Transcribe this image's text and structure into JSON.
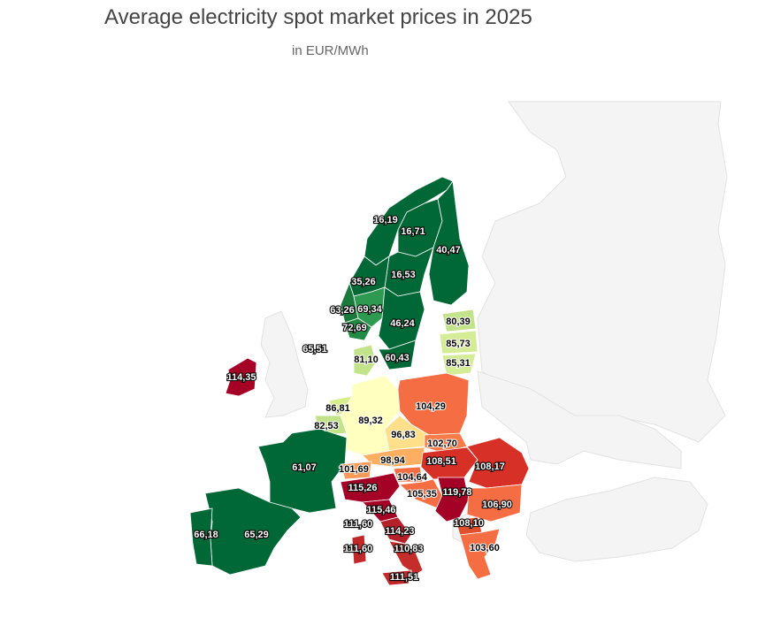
{
  "title": "Average electricity spot market prices in 2025",
  "subtitle": "in EUR/MWh",
  "chart_data": {
    "type": "choropleth",
    "title": "Average electricity spot market prices in 2025",
    "subtitle": "in EUR/MWh",
    "unit": "EUR/MWh",
    "color_scale": [
      "#006837",
      "#1a9850",
      "#66bd63",
      "#a6d96a",
      "#d9ef8b",
      "#ffffbf",
      "#fee08b",
      "#fdae61",
      "#f46d43",
      "#d73027",
      "#a50026"
    ],
    "regions": [
      {
        "id": "NO4",
        "label": "16,19",
        "value": 16.19,
        "color": "#006837"
      },
      {
        "id": "SE1",
        "label": "16,71",
        "value": 16.71,
        "color": "#006837"
      },
      {
        "id": "FI",
        "label": "40,47",
        "value": 40.47,
        "color": "#006837"
      },
      {
        "id": "SE2",
        "label": "16,53",
        "value": 16.53,
        "color": "#006837"
      },
      {
        "id": "NO3",
        "label": "35,26",
        "value": 35.26,
        "color": "#006837"
      },
      {
        "id": "NO5",
        "label": "63,26",
        "value": 63.26,
        "color": "#1a7a3c"
      },
      {
        "id": "NO1",
        "label": "69,34",
        "value": 69.34,
        "color": "#2e9950"
      },
      {
        "id": "NO2",
        "label": "72,69",
        "value": 72.69,
        "color": "#238b45"
      },
      {
        "id": "SE3",
        "label": "46,24",
        "value": 46.24,
        "color": "#006837"
      },
      {
        "id": "SE4",
        "label": "60,43",
        "value": 60.43,
        "color": "#006837"
      },
      {
        "id": "EE",
        "label": "80,39",
        "value": 80.39,
        "color": "#c2e38a"
      },
      {
        "id": "LV",
        "label": "85,73",
        "value": 85.73,
        "color": "#d5ec96"
      },
      {
        "id": "LT",
        "label": "85,31",
        "value": 85.31,
        "color": "#d5ec96"
      },
      {
        "id": "GB",
        "label": "65,51",
        "value": 65.51,
        "color": "#f4f4f4"
      },
      {
        "id": "DK",
        "label": "81,10",
        "value": 81.1,
        "color": "#c2e38a"
      },
      {
        "id": "IE",
        "label": "114,35",
        "value": 114.35,
        "color": "#a50026"
      },
      {
        "id": "NL",
        "label": "86,81",
        "value": 86.81,
        "color": "#d9ef8b"
      },
      {
        "id": "BE",
        "label": "82,53",
        "value": 82.53,
        "color": "#c2e38a"
      },
      {
        "id": "DE",
        "label": "89,32",
        "value": 89.32,
        "color": "#ffffbf"
      },
      {
        "id": "PL",
        "label": "104,29",
        "value": 104.29,
        "color": "#f46d43"
      },
      {
        "id": "CZ",
        "label": "96,83",
        "value": 96.83,
        "color": "#fee08b"
      },
      {
        "id": "SK",
        "label": "102,70",
        "value": 102.7,
        "color": "#f67c4a"
      },
      {
        "id": "AT",
        "label": "98,94",
        "value": 98.94,
        "color": "#fdae61"
      },
      {
        "id": "HU",
        "label": "108,51",
        "value": 108.51,
        "color": "#d73027"
      },
      {
        "id": "RO",
        "label": "108,17",
        "value": 108.17,
        "color": "#d73027"
      },
      {
        "id": "FR",
        "label": "61,07",
        "value": 61.07,
        "color": "#006837"
      },
      {
        "id": "CH",
        "label": "101,69",
        "value": 101.69,
        "color": "#fa9a58"
      },
      {
        "id": "SI",
        "label": "104,64",
        "value": 104.64,
        "color": "#f46d43"
      },
      {
        "id": "IT-N",
        "label": "115,26",
        "value": 115.26,
        "color": "#a50026"
      },
      {
        "id": "HR",
        "label": "105,35",
        "value": 105.35,
        "color": "#f46d43"
      },
      {
        "id": "RS",
        "label": "119,78",
        "value": 119.78,
        "color": "#a50026"
      },
      {
        "id": "BG",
        "label": "106,90",
        "value": 106.9,
        "color": "#f46d43"
      },
      {
        "id": "IT-CN",
        "label": "115,46",
        "value": 115.46,
        "color": "#a50026"
      },
      {
        "id": "MK",
        "label": "108,10",
        "value": 108.1,
        "color": "#e0502f"
      },
      {
        "id": "IT-SARD-N",
        "label": "111,60",
        "value": 111.6,
        "color": "#c0282a"
      },
      {
        "id": "IT-CS",
        "label": "114,23",
        "value": 114.23,
        "color": "#b5212b"
      },
      {
        "id": "ES",
        "label": "65,29",
        "value": 65.29,
        "color": "#006837"
      },
      {
        "id": "PT",
        "label": "66,18",
        "value": 66.18,
        "color": "#006837"
      },
      {
        "id": "IT-SARD",
        "label": "111,60",
        "value": 111.6,
        "color": "#c0282a"
      },
      {
        "id": "IT-S",
        "label": "110,83",
        "value": 110.83,
        "color": "#c52d2a"
      },
      {
        "id": "GR",
        "label": "103,60",
        "value": 103.6,
        "color": "#f46d43"
      },
      {
        "id": "IT-SIC",
        "label": "111,51",
        "value": 111.51,
        "color": "#c0282a"
      }
    ]
  }
}
